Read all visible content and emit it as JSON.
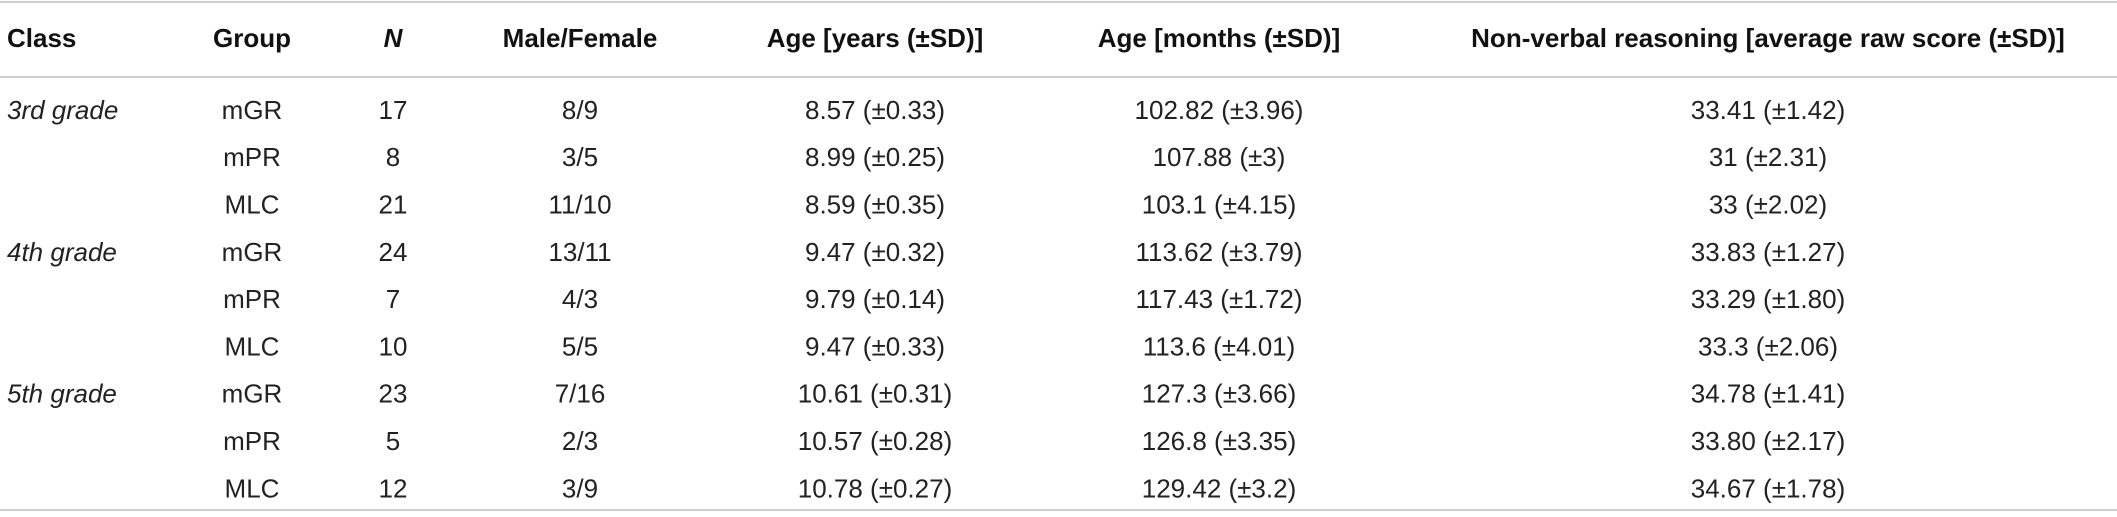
{
  "table": {
    "header": [
      "Class",
      "Group",
      "N",
      "Male/Female",
      "Age [years (±SD)]",
      "Age [months (±SD)]",
      "Non-verbal reasoning [average raw score (±SD)]"
    ],
    "rows": [
      [
        "3rd grade",
        "mGR",
        "17",
        "8/9",
        "8.57 (±0.33)",
        "102.82 (±3.96)",
        "33.41 (±1.42)"
      ],
      [
        null,
        "mPR",
        "8",
        "3/5",
        "8.99 (±0.25)",
        "107.88 (±3)",
        "31 (±2.31)"
      ],
      [
        null,
        "MLC",
        "21",
        "11/10",
        "8.59 (±0.35)",
        "103.1 (±4.15)",
        "33 (±2.02)"
      ],
      [
        "4th grade",
        "mGR",
        "24",
        "13/11",
        "9.47 (±0.32)",
        "113.62 (±3.79)",
        "33.83 (±1.27)"
      ],
      [
        null,
        "mPR",
        "7",
        "4/3",
        "9.79 (±0.14)",
        "117.43 (±1.72)",
        "33.29 (±1.80)"
      ],
      [
        null,
        "MLC",
        "10",
        "5/5",
        "9.47 (±0.33)",
        "113.6 (±4.01)",
        "33.3 (±2.06)"
      ],
      [
        "5th grade",
        "mGR",
        "23",
        "7/16",
        "10.61 (±0.31)",
        "127.3 (±3.66)",
        "34.78 (±1.41)"
      ],
      [
        null,
        "mPR",
        "5",
        "2/3",
        "10.57 (±0.28)",
        "126.8 (±3.35)",
        "33.80 (±2.17)"
      ],
      [
        null,
        "MLC",
        "12",
        "3/9",
        "10.78 (±0.27)",
        "129.42 (±3.2)",
        "34.67 (±1.78)"
      ]
    ]
  }
}
